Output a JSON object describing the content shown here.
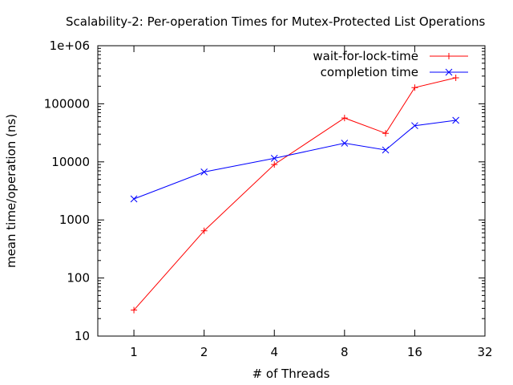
{
  "chart_data": {
    "type": "line",
    "title": "Scalability-2: Per-operation Times for Mutex-Protected List Operations",
    "xlabel": "# of Threads",
    "ylabel": "mean time/operation (ns)",
    "x_scale": "log2",
    "y_scale": "log10",
    "xlim": [
      0.7,
      32
    ],
    "ylim": [
      10,
      1000000
    ],
    "x_ticks": [
      1,
      2,
      4,
      8,
      16,
      32
    ],
    "x_tick_labels": [
      "1",
      "2",
      "4",
      "8",
      "16",
      "32"
    ],
    "y_ticks": [
      10,
      100,
      1000,
      10000,
      100000,
      1000000
    ],
    "y_tick_labels": [
      "10",
      "100",
      "1000",
      "10000",
      "100000",
      "1e+06"
    ],
    "grid": false,
    "legend_position": "top-right",
    "series": [
      {
        "name": "wait-for-lock-time",
        "color": "#ff0000",
        "marker": "plus",
        "x": [
          1,
          2,
          4,
          8,
          12,
          16,
          24
        ],
        "values": [
          28,
          650,
          9000,
          57000,
          31000,
          190000,
          280000
        ]
      },
      {
        "name": "completion time",
        "color": "#0000ff",
        "marker": "cross",
        "x": [
          1,
          2,
          4,
          8,
          12,
          16,
          24
        ],
        "values": [
          2300,
          6700,
          11500,
          21000,
          16000,
          42000,
          52000
        ]
      }
    ]
  }
}
